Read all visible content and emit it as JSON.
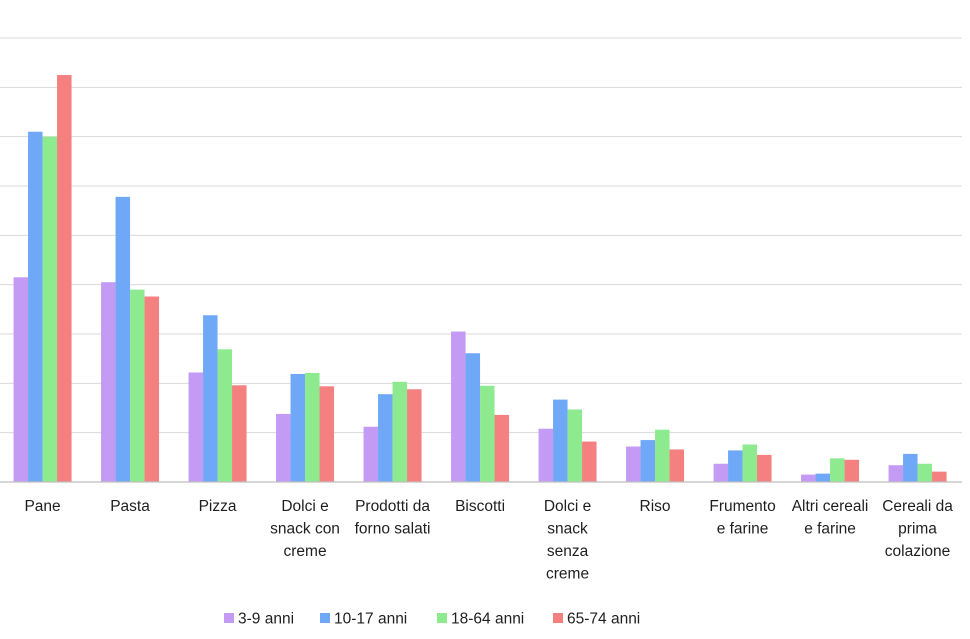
{
  "chart_data": {
    "type": "bar",
    "title": "",
    "xlabel": "",
    "ylabel": "",
    "ylim": [
      0,
      90
    ],
    "grid": true,
    "legend_position": "bottom",
    "categories": [
      [
        "Pane"
      ],
      [
        "Pasta"
      ],
      [
        "Pizza"
      ],
      [
        "Dolci e",
        "snack con",
        "creme"
      ],
      [
        "Prodotti da",
        "forno salati"
      ],
      [
        "Biscotti"
      ],
      [
        "Dolci e",
        "snack",
        "senza",
        "creme"
      ],
      [
        "Riso"
      ],
      [
        "Frumento",
        "e farine"
      ],
      [
        "Altri cereali",
        "e farine"
      ],
      [
        "Cereali da",
        "prima",
        "colazione"
      ]
    ],
    "series": [
      {
        "name": "3-9 anni",
        "color": "#c39bf5",
        "values": [
          41.5,
          40.5,
          22.2,
          13.8,
          11.2,
          30.5,
          10.8,
          7.2,
          3.7,
          1.5,
          3.4
        ]
      },
      {
        "name": "10-17 anni",
        "color": "#6fa8f7",
        "values": [
          71,
          57.8,
          33.8,
          21.9,
          17.8,
          26.1,
          16.7,
          8.5,
          6.4,
          1.7,
          5.7
        ]
      },
      {
        "name": "18-64 anni",
        "color": "#8eea8e",
        "values": [
          70,
          39,
          26.9,
          22.1,
          20.3,
          19.5,
          14.7,
          10.6,
          7.6,
          4.8,
          3.7
        ]
      },
      {
        "name": "65-74 anni",
        "color": "#f48080",
        "values": [
          82.5,
          37.6,
          19.6,
          19.4,
          18.8,
          13.6,
          8.2,
          6.6,
          5.5,
          4.5,
          2.1
        ]
      }
    ]
  },
  "colors": {
    "grid": "#d9d9d9",
    "axis": "#bfbfbf"
  }
}
